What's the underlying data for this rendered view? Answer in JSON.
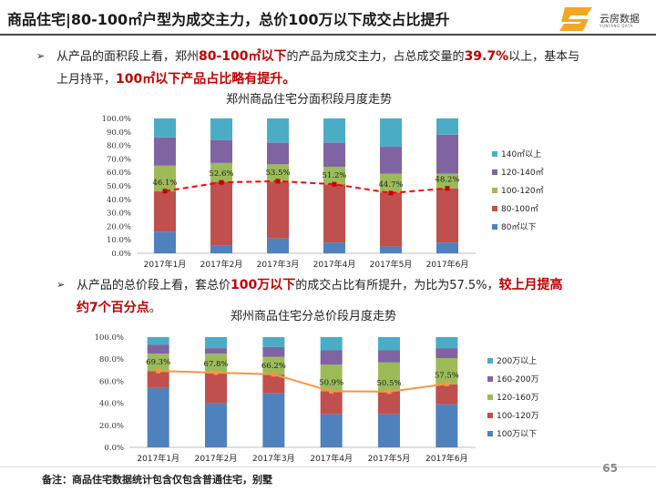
{
  "header": {
    "title": "商品住宅|80-100㎡户型为成交主力，总价100万以下成交占比提升",
    "logo_text": "云房数据",
    "logo_sub": "YUNFANG DATA"
  },
  "para1": {
    "line1_pre": "从产品的面积段上看，郑州",
    "line1_hl1": "80-100㎡以下",
    "line1_mid": "的产品为成交主力，占总成交量的",
    "line1_hl2": "39.7%",
    "line1_post": "以上，基本与",
    "line2_pre": "上月持平，",
    "line2_hl": "100㎡以下产品占比略有提升。"
  },
  "para2": {
    "line1_pre": "从产品的总价段上看，套总价",
    "line1_hl1": "100万以下",
    "line1_mid": "的成交占比有所提升，为比为57.5%，",
    "line1_hl2": "较上月提高",
    "line2_hl": "约7个百分点",
    "line2_post": "。"
  },
  "footer": {
    "page_number": "65",
    "note": "备注：商品住宅数据统计包含仅包含普通住宅，别墅"
  },
  "colors": {
    "blue": "#4f81bd",
    "red": "#c0504d",
    "green": "#9bbb59",
    "purple": "#8064a2",
    "cyan": "#4bacc6",
    "line1": "#ff0000",
    "line2": "#f79646"
  },
  "chart_data": [
    {
      "type": "bar",
      "stacked": true,
      "title": "郑州商品住宅分面积段月度走势",
      "categories": [
        "2017年1月",
        "2017年2月",
        "2017年3月",
        "2017年4月",
        "2017年5月",
        "2017年6月"
      ],
      "ylim": [
        0,
        100
      ],
      "yticks": [
        "0.0%",
        "10.0%",
        "20.0%",
        "30.0%",
        "40.0%",
        "50.0%",
        "60.0%",
        "70.0%",
        "80.0%",
        "90.0%",
        "100.0%"
      ],
      "series": [
        {
          "name": "80㎡以下",
          "values": [
            16,
            6,
            11,
            8,
            5,
            8
          ]
        },
        {
          "name": "80-100㎡",
          "values": [
            30,
            47,
            42,
            43,
            40,
            40
          ]
        },
        {
          "name": "100-120㎡",
          "values": [
            19,
            14,
            13,
            13,
            14,
            11
          ]
        },
        {
          "name": "120-140㎡",
          "values": [
            21,
            17,
            16,
            18,
            20,
            29
          ]
        },
        {
          "name": "140㎡以上",
          "values": [
            14,
            16,
            18,
            18,
            21,
            12
          ]
        }
      ],
      "line": {
        "values": [
          46.1,
          52.6,
          53.5,
          51.2,
          44.7,
          48.2
        ],
        "labels": [
          "46.1%",
          "52.6%",
          "53.5%",
          "51.2%",
          "44.7%",
          "48.2%"
        ]
      },
      "legend_position": "right"
    },
    {
      "type": "bar",
      "stacked": true,
      "title": "郑州商品住宅分总价段月度走势",
      "categories": [
        "2017年1月",
        "2017年2月",
        "2017年3月",
        "2017年4月",
        "2017年5月",
        "2017年6月"
      ],
      "ylim": [
        0,
        100
      ],
      "yticks": [
        "0.0%",
        "20.0%",
        "40.0%",
        "60.0%",
        "80.0%",
        "100.0%"
      ],
      "series": [
        {
          "name": "100万以下",
          "values": [
            54,
            40,
            49,
            30,
            30,
            39
          ]
        },
        {
          "name": "100-120万",
          "values": [
            15,
            27,
            17,
            21,
            21,
            18
          ]
        },
        {
          "name": "120-160万",
          "values": [
            16,
            18,
            16,
            24,
            26,
            24
          ]
        },
        {
          "name": "160-200万",
          "values": [
            8,
            5,
            9,
            13,
            11,
            9
          ]
        },
        {
          "name": "200万以上",
          "values": [
            7,
            10,
            9,
            12,
            12,
            10
          ]
        }
      ],
      "line": {
        "values": [
          69.3,
          67.8,
          66.2,
          50.9,
          50.5,
          57.5
        ],
        "labels": [
          "69.3%",
          "67.8%",
          "66.2%",
          "50.9%",
          "50.5%",
          "57.5%"
        ]
      },
      "legend_position": "right"
    }
  ]
}
